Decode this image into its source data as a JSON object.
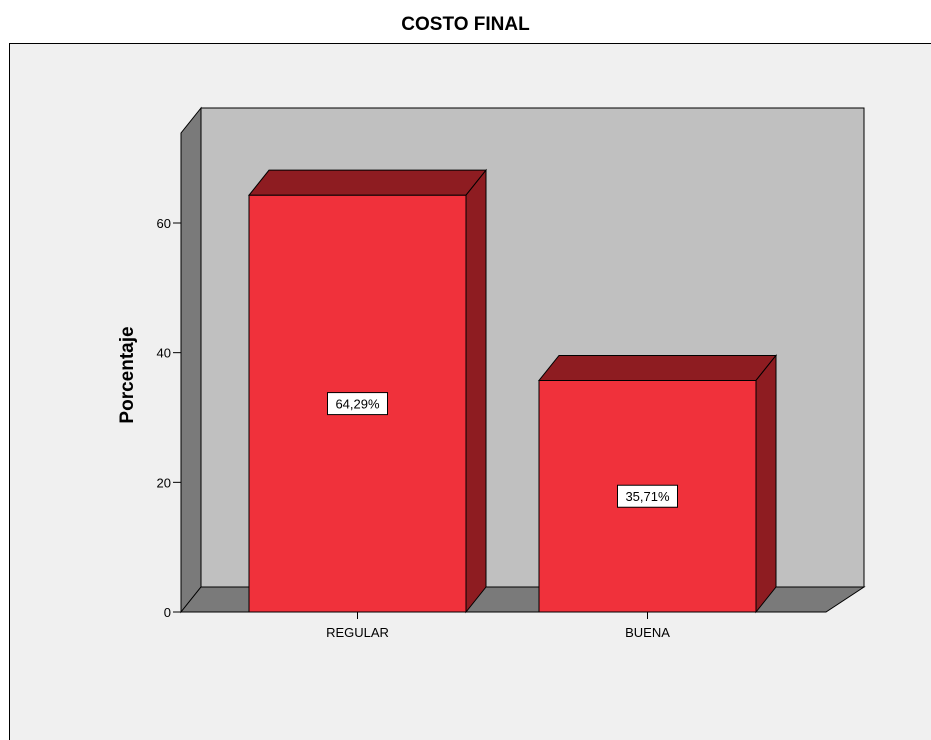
{
  "chart_data": {
    "type": "bar",
    "title": "COSTO FINAL",
    "xlabel": "",
    "ylabel": "Porcentaje",
    "categories": [
      "REGULAR",
      "BUENA"
    ],
    "values": [
      64.29,
      35.71
    ],
    "data_labels": [
      "64,29%",
      "35,71%"
    ],
    "ylim": [
      0,
      70
    ],
    "yticks": [
      0,
      20,
      40,
      60
    ],
    "grid": false,
    "legend": "none",
    "style": "3d",
    "colors": {
      "bar_front": "#f0313b",
      "bar_top": "#8e1c21",
      "bar_side": "#8e1c21",
      "back_wall": "#c0c0c0",
      "floor": "#7a7a7a",
      "side_wall": "#7a7a7a",
      "frame_bg": "#f0f0f0"
    }
  }
}
